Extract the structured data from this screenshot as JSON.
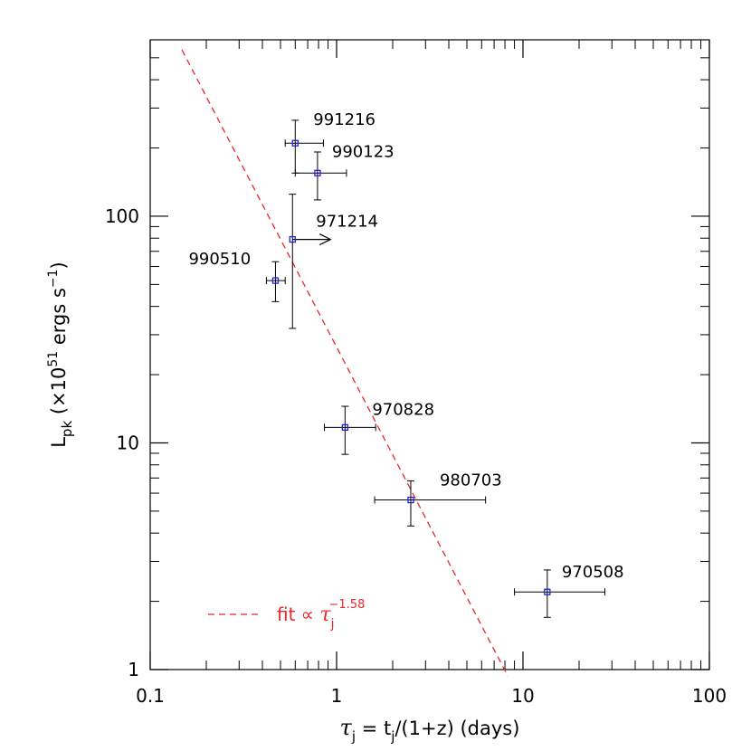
{
  "chart_data": {
    "type": "scatter",
    "xlabel": {
      "main": "τ",
      "sub1": "j",
      "mid": " = t",
      "sub2": "j",
      "rest": "/(1+z) (days)"
    },
    "ylabel": {
      "main": "L",
      "sub": "pk",
      "pre": " (×10",
      "sup": "51",
      "mid": " ergs s",
      "sup2": "−1",
      "post": ")"
    },
    "xscale": "log",
    "yscale": "log",
    "xlim": [
      0.1,
      100
    ],
    "ylim": [
      1,
      600
    ],
    "x_ticks": [
      {
        "value": 0.1,
        "label": "0.1"
      },
      {
        "value": 1,
        "label": "1"
      },
      {
        "value": 10,
        "label": "10"
      },
      {
        "value": 100,
        "label": "100"
      }
    ],
    "y_ticks": [
      {
        "value": 1,
        "label": "1"
      },
      {
        "value": 10,
        "label": "10"
      },
      {
        "value": 100,
        "label": "100"
      }
    ],
    "points": [
      {
        "name": "991216",
        "x": 0.6,
        "y": 210,
        "x_lo": 0.53,
        "x_hi": 0.85,
        "y_lo": 155,
        "y_hi": 265
      },
      {
        "name": "990123",
        "x": 0.79,
        "y": 155,
        "x_lo": 0.6,
        "x_hi": 1.13,
        "y_lo": 118,
        "y_hi": 192
      },
      {
        "name": "971214",
        "x": 0.58,
        "y": 79,
        "x_lo": 0.58,
        "x_hi": 0.58,
        "y_lo": 32,
        "y_hi": 125,
        "lower_limit_x": true
      },
      {
        "name": "990510",
        "x": 0.47,
        "y": 52,
        "x_lo": 0.42,
        "x_hi": 0.53,
        "y_lo": 42,
        "y_hi": 63
      },
      {
        "name": "970828",
        "x": 1.11,
        "y": 11.7,
        "x_lo": 0.86,
        "x_hi": 1.62,
        "y_lo": 8.9,
        "y_hi": 14.5
      },
      {
        "name": "980703",
        "x": 2.5,
        "y": 5.6,
        "x_lo": 1.6,
        "x_hi": 6.3,
        "y_lo": 4.3,
        "y_hi": 6.8
      },
      {
        "name": "970508",
        "x": 13.5,
        "y": 2.2,
        "x_lo": 9.0,
        "x_hi": 27.5,
        "y_lo": 1.7,
        "y_hi": 2.75
      }
    ],
    "fit": {
      "text": "fit ∝ ",
      "symbol": "τ",
      "sub": "j",
      "sup": "−1.58",
      "slope": -1.58,
      "x_start": 0.148,
      "x_end": 8.3,
      "color": "#e8282d",
      "legend_position": "bottom-left"
    },
    "colors": {
      "marker": "#1f22d6",
      "error_bar": "#000000",
      "fit_line": "#e8282d"
    }
  }
}
